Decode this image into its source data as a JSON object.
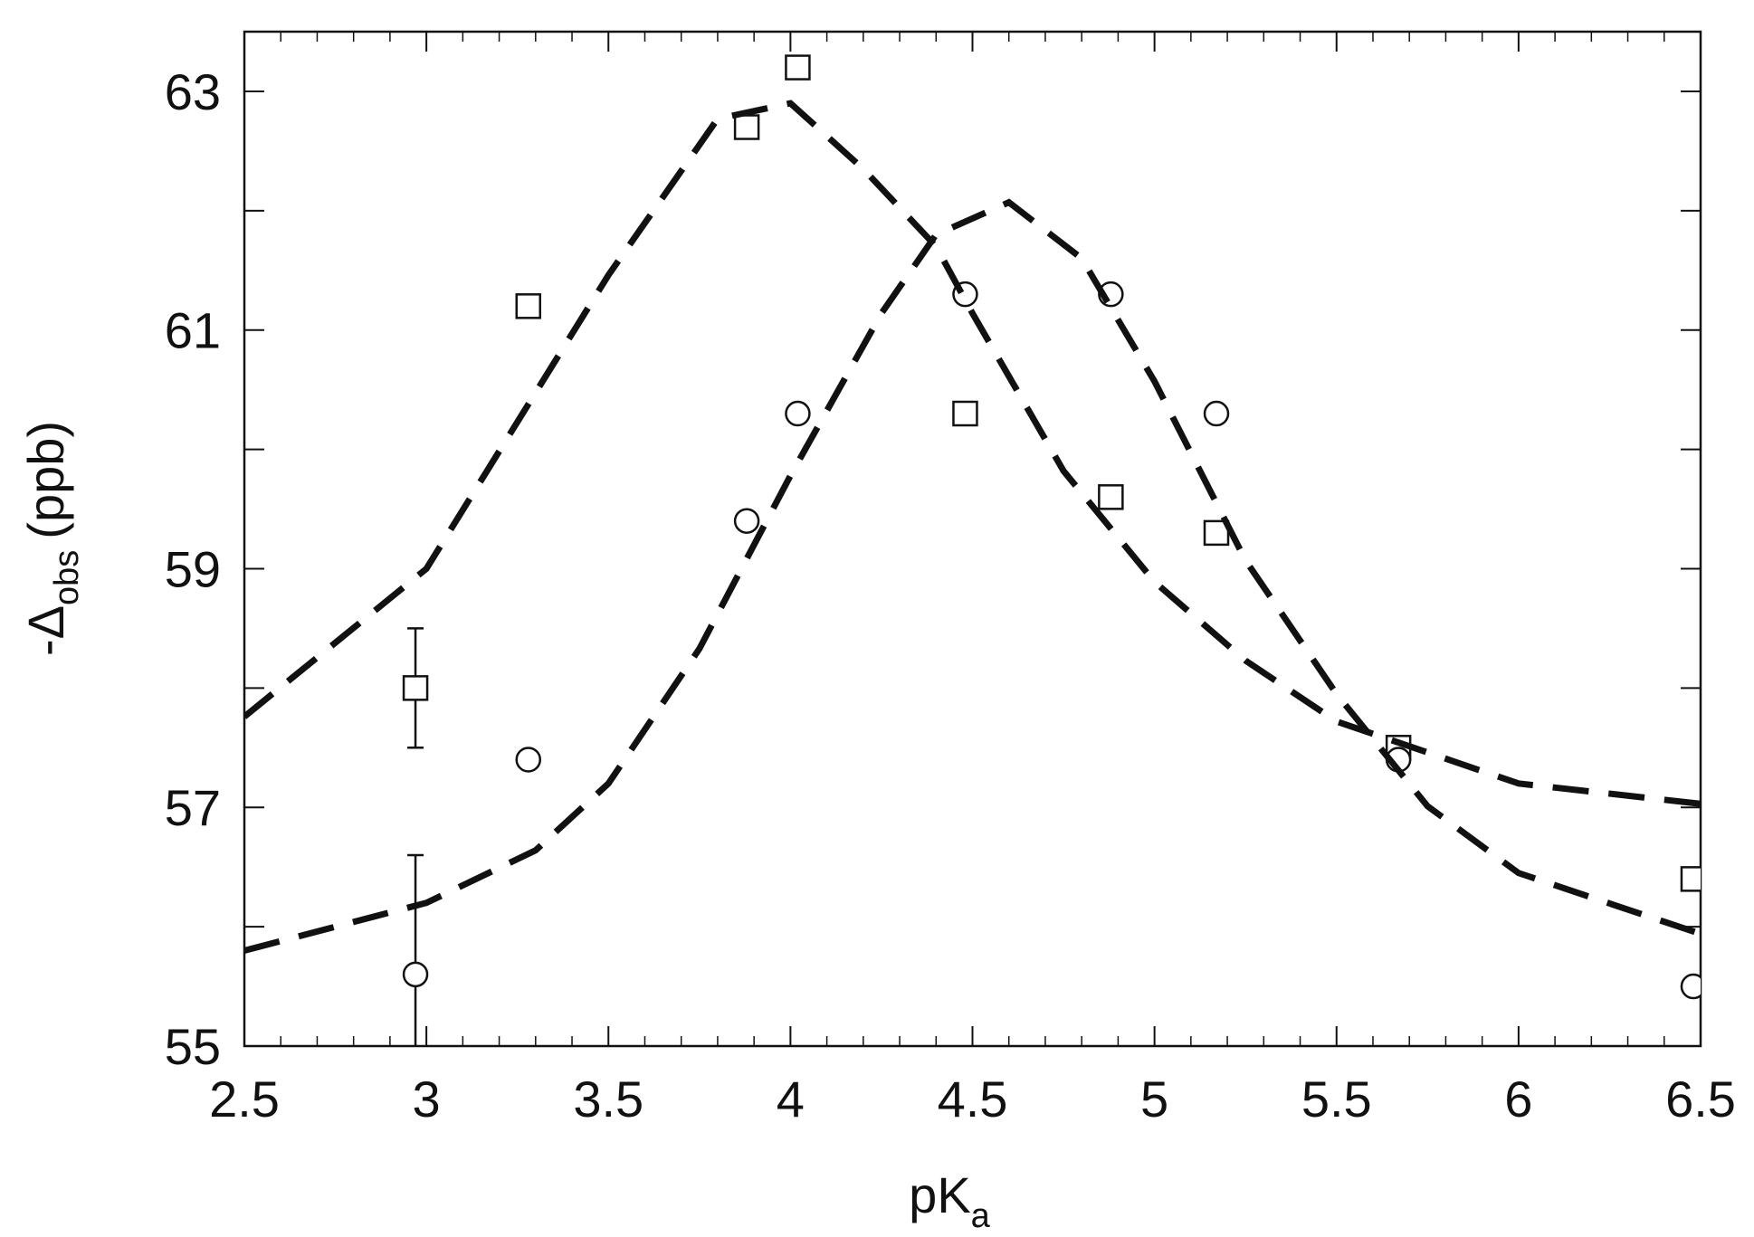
{
  "chart_data": {
    "type": "scatter",
    "xlabel": {
      "main": "pK",
      "sub": "a"
    },
    "ylabel": {
      "main": "-Δ",
      "sub": "obs",
      "unit": "(ppb)"
    },
    "xlim": [
      2.5,
      6.5
    ],
    "xticks": [
      2.5,
      3,
      3.5,
      4,
      4.5,
      5,
      5.5,
      6,
      6.5
    ],
    "ylim": [
      55,
      63.5
    ],
    "yticks": [
      55,
      57,
      59,
      61,
      63
    ],
    "color": "#111111",
    "series": [
      {
        "kind": "points",
        "marker": "square",
        "x": [
          2.97,
          3.28,
          3.88,
          4.02,
          4.48,
          4.88,
          5.17,
          5.67,
          6.48
        ],
        "values": [
          58.0,
          61.2,
          62.7,
          63.2,
          60.3,
          59.6,
          59.3,
          57.5,
          56.4
        ],
        "errors": [
          0.5,
          null,
          null,
          null,
          null,
          null,
          null,
          null,
          null
        ]
      },
      {
        "kind": "points",
        "marker": "circle",
        "x": [
          2.97,
          3.28,
          3.88,
          4.02,
          4.48,
          4.88,
          5.17,
          5.67,
          6.48
        ],
        "values": [
          55.6,
          57.4,
          59.4,
          60.3,
          61.3,
          61.3,
          60.3,
          57.4,
          55.5
        ],
        "errors": [
          1.0,
          null,
          null,
          null,
          null,
          null,
          null,
          null,
          null
        ]
      },
      {
        "kind": "line",
        "style": "dashed",
        "x": [
          2.5,
          3.0,
          3.5,
          3.8,
          4.0,
          4.2,
          4.4,
          4.5,
          4.75,
          5.0,
          5.25,
          5.5,
          6.0,
          6.5
        ],
        "values": [
          57.76,
          59.0,
          61.46,
          62.77,
          62.9,
          62.35,
          61.7,
          61.14,
          59.82,
          58.89,
          58.23,
          57.72,
          57.2,
          57.03
        ]
      },
      {
        "kind": "line",
        "style": "dashed",
        "x": [
          2.5,
          3.0,
          3.3,
          3.5,
          3.75,
          4.0,
          4.25,
          4.4,
          4.6,
          4.8,
          5.0,
          5.25,
          5.5,
          5.75,
          6.0,
          6.5
        ],
        "values": [
          55.8,
          56.2,
          56.64,
          57.2,
          58.33,
          59.78,
          61.14,
          61.8,
          62.07,
          61.6,
          60.57,
          59.07,
          57.95,
          57.01,
          56.45,
          55.94
        ]
      }
    ]
  }
}
